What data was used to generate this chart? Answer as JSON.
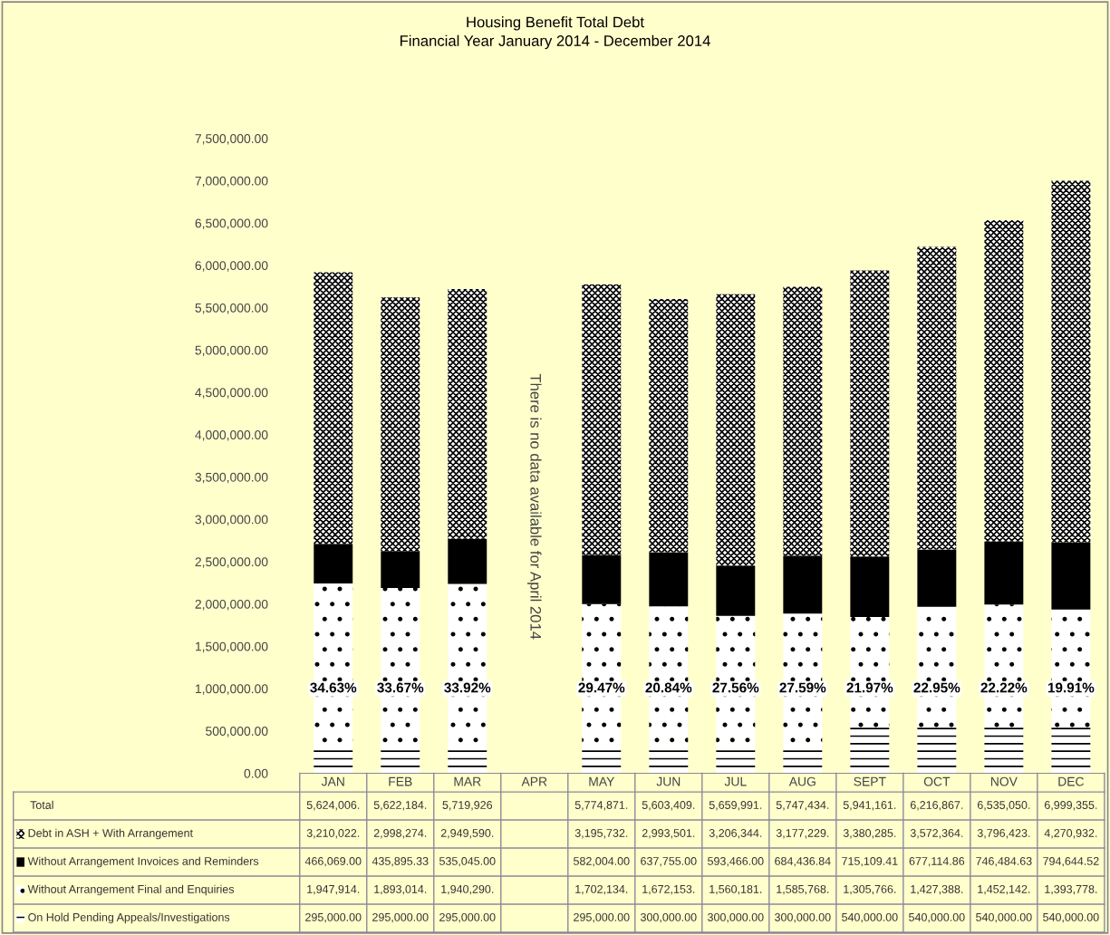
{
  "chart_data": {
    "type": "bar",
    "stacked": true,
    "title": "Housing Benefit Total Debt",
    "subtitle": "Financial Year January 2014 - December 2014",
    "categories": [
      "JAN",
      "FEB",
      "MAR",
      "APR",
      "MAY",
      "JUN",
      "JUL",
      "AUG",
      "SEPT",
      "OCT",
      "NOV",
      "DEC"
    ],
    "series": [
      {
        "name": "On Hold Pending Appeals/Investigations",
        "color": "#000000",
        "values": [
          295000,
          295000,
          295000,
          null,
          295000,
          300000,
          300000,
          300000,
          540000,
          540000,
          540000,
          540000
        ],
        "value_labels": [
          "295,000.00",
          "295,000.00",
          "295,000.00",
          null,
          "295,000.00",
          "300,000.00",
          "300,000.00",
          "300,000.00",
          "540,000.00",
          "540,000.00",
          "540,000.00",
          "540,000.00"
        ]
      },
      {
        "name": "Without Arrangement Final and Enquiries",
        "color": "#000000",
        "values": [
          1947914,
          1893014,
          1940290,
          null,
          1702134,
          1672153,
          1560181,
          1585768,
          1305766,
          1427388,
          1452142,
          1393778
        ],
        "value_labels": [
          "1,947,914.",
          "1,893,014.",
          "1,940,290.",
          null,
          "1,702,134.",
          "1,672,153.",
          "1,560,181.",
          "1,585,768.",
          "1,305,766.",
          "1,427,388.",
          "1,452,142.",
          "1,393,778."
        ]
      },
      {
        "name": "Without Arrangement Invoices and Reminders",
        "color": "#000000",
        "values": [
          466069.0,
          435895.33,
          535045.0,
          null,
          582004.0,
          637755.0,
          593466.0,
          684436.84,
          715109.41,
          677114.86,
          746484.63,
          794644.52
        ],
        "value_labels": [
          "466,069.00",
          "435,895.33",
          "535,045.00",
          null,
          "582,004.00",
          "637,755.00",
          "593,466.00",
          "684,436.84",
          "715,109.41",
          "677,114.86",
          "746,484.63",
          "794,644.52"
        ]
      },
      {
        "name": "Debt in ASH + With Arrangement",
        "color": "#000000",
        "values": [
          3210022,
          2998274,
          2949590,
          null,
          3195732,
          2993501,
          3206344,
          3177229,
          3380285,
          3572364,
          3796423,
          4270932
        ],
        "value_labels": [
          "3,210,022.",
          "2,998,274.",
          "2,949,590.",
          null,
          "3,195,732.",
          "2,993,501.",
          "3,206,344.",
          "3,177,229.",
          "3,380,285.",
          "3,572,364.",
          "3,796,423.",
          "4,270,932."
        ]
      }
    ],
    "ylim": [
      0,
      7500000
    ],
    "yticks": [
      {
        "value": 0,
        "label": "0.00"
      },
      {
        "value": 500000,
        "label": "500,000.00"
      },
      {
        "value": 1000000,
        "label": "1,000,000.00"
      },
      {
        "value": 1500000,
        "label": "1,500,000.00"
      },
      {
        "value": 2000000,
        "label": "2,000,000.00"
      },
      {
        "value": 2500000,
        "label": "2,500,000.00"
      },
      {
        "value": 3000000,
        "label": "3,000,000.00"
      },
      {
        "value": 3500000,
        "label": "3,500,000.00"
      },
      {
        "value": 4000000,
        "label": "4,000,000.00"
      },
      {
        "value": 4500000,
        "label": "4,500,000.00"
      },
      {
        "value": 5000000,
        "label": "5,000,000.00"
      },
      {
        "value": 5500000,
        "label": "5,500,000.00"
      },
      {
        "value": 6000000,
        "label": "6,000,000.00"
      },
      {
        "value": 6500000,
        "label": "6,500,000.00"
      },
      {
        "value": 7000000,
        "label": "7,000,000.00"
      },
      {
        "value": 7500000,
        "label": "7,500,000.00"
      }
    ],
    "annotations": [
      "34.63%",
      "33.67%",
      "33.92%",
      "29.47%",
      "20.84%",
      "27.56%",
      "27.59%",
      "21.97%",
      "22.95%",
      "22.22%",
      "19.91%",
      "There is no data available for April 2014",
      "Total",
      "5,624,006.",
      "5,622,184.",
      "5,719,926",
      "5,774,871.",
      "5,603,409.",
      "5,659,991.",
      "5,747,434.",
      "5,941,161.",
      "6,216,867.",
      "6,535,050.",
      "6,999,355."
    ],
    "legend": "bottom",
    "grid": false
  }
}
